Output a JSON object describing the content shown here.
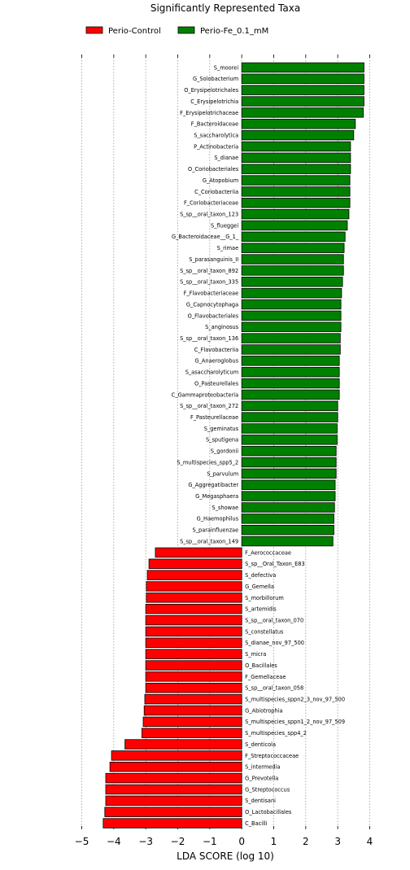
{
  "chart_data": {
    "type": "bar",
    "orientation": "horizontal",
    "title": "Significantly Represented Taxa",
    "xlabel": "LDA SCORE (log 10)",
    "xlim": [
      -5,
      4
    ],
    "xticks": [
      "−5",
      "−4",
      "−3",
      "−2",
      "−1",
      "0",
      "1",
      "2",
      "3",
      "4"
    ],
    "grid": "vertical dotted",
    "legend_position": "top",
    "series": [
      {
        "name": "Perio-Control",
        "color": "#ff0000"
      },
      {
        "name": "Perio-Fe_0.1_mM",
        "color": "#008000"
      }
    ],
    "categories": [
      "S_moorei",
      "G_Solobacterium",
      "O_Erysipelotrichales",
      "C_Erysipelotrichia",
      "F_Erysipelotrichaceae",
      "F_Bacteroidaceae",
      "S_saccharolytica",
      "P_Actinobacteria",
      "S_dianae",
      "O_Coriobacteriales",
      "G_Atopobium",
      "C_Coriobacteriia",
      "F_Coriobacteriaceae",
      "S_sp__oral_taxon_123",
      "S_flueggei",
      "G_Bacteroidaceae__G_1_",
      "S_rimae",
      "S_parasanguinis_II",
      "S_sp__oral_taxon_892",
      "S_sp__oral_taxon_335",
      "F_Flavobacteriaceae",
      "G_Capnocytophaga",
      "O_Flavobacteriales",
      "S_anginosus",
      "S_sp__oral_taxon_136",
      "C_Flavobacteriia",
      "G_Anaeroglobus",
      "S_asaccharolyticum",
      "O_Pasteurellales",
      "C_Gammaproteobacteria",
      "S_sp__oral_taxon_272",
      "F_Pasteurellaceae",
      "S_geminatus",
      "S_sputigena",
      "S_gordonii",
      "S_multispecies_spp5_2",
      "S_parvulum",
      "G_Aggregatibacter",
      "G_Megasphaera",
      "S_showae",
      "G_Haemophilus",
      "S_parainfluenzae",
      "S_sp__oral_taxon_149",
      "F_Aerococcaceae",
      "S_sp__Oral_Taxon_E83",
      "S_defectiva",
      "G_Gemella",
      "S_morbillorum",
      "S_artemidis",
      "S_sp__oral_taxon_070",
      "S_constellatus",
      "S_dianae_nov_97_500",
      "S_micra",
      "O_Bacillales",
      "F_Gemellaceae",
      "S_sp__oral_taxon_058",
      "S_multispecies_sppn2_3_nov_97_500",
      "G_Abiotrophia",
      "S_multispecies_sppn1_2_nov_97_509",
      "S_multispecies_spp4_2",
      "S_denticola",
      "F_Streptococcaceae",
      "S_intermedia",
      "G_Prevotella",
      "G_Streptococcus",
      "S_dentisani",
      "O_Lactobacillales",
      "C_Bacilli"
    ],
    "values": [
      3.82,
      3.82,
      3.82,
      3.82,
      3.8,
      3.55,
      3.5,
      3.4,
      3.4,
      3.4,
      3.38,
      3.38,
      3.38,
      3.35,
      3.3,
      3.23,
      3.2,
      3.18,
      3.18,
      3.15,
      3.12,
      3.1,
      3.1,
      3.1,
      3.08,
      3.08,
      3.05,
      3.05,
      3.05,
      3.05,
      3.0,
      3.0,
      2.98,
      2.98,
      2.95,
      2.95,
      2.95,
      2.92,
      2.92,
      2.9,
      2.88,
      2.88,
      2.85,
      -2.7,
      -2.9,
      -2.95,
      -2.98,
      -2.98,
      -3.0,
      -3.0,
      -3.0,
      -3.0,
      -3.0,
      -3.0,
      -3.0,
      -3.0,
      -3.03,
      -3.05,
      -3.08,
      -3.12,
      -3.65,
      -4.07,
      -4.12,
      -4.25,
      -4.25,
      -4.25,
      -4.28,
      -4.33
    ]
  }
}
